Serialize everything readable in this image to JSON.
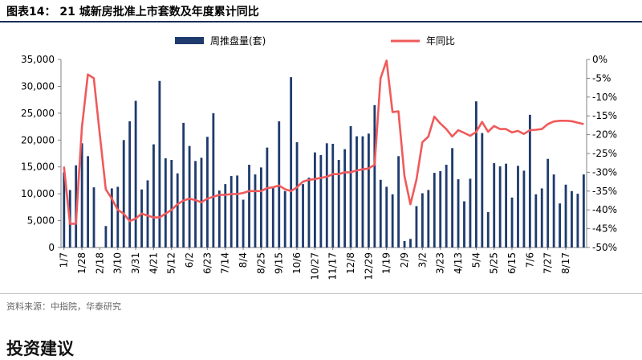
{
  "figure": {
    "title": "图表14：  21 城新房批准上市套数及年度累计同比",
    "source": "资料来源：中指院，华泰研究",
    "section_heading": "投资建议"
  },
  "colors": {
    "bar": "#1f3b6e",
    "line": "#f05a5b"
  },
  "chart_data": {
    "type": "bar+line",
    "title": "21 城新房批准上市套数及年度累计同比",
    "legend": [
      "周推盘量(套)",
      "年同比"
    ],
    "legend_position": "top",
    "y_left": {
      "min": 0,
      "max": 35000,
      "ticks": [
        "0",
        "5,000",
        "10,000",
        "15,000",
        "20,000",
        "25,000",
        "30,000",
        "35,000"
      ]
    },
    "y_right": {
      "min": -50,
      "max": 0,
      "ticks": [
        "0%",
        "-5%",
        "-10%",
        "-15%",
        "-20%",
        "-25%",
        "-30%",
        "-35%",
        "-40%",
        "-45%",
        "-50%"
      ]
    },
    "x_tick_labels": [
      "1/7",
      "1/28",
      "2/18",
      "3/10",
      "3/31",
      "4/21",
      "5/12",
      "6/2",
      "6/23",
      "7/14",
      "8/4",
      "8/25",
      "9/15",
      "10/6",
      "10/27",
      "11/17",
      "12/8",
      "12/29",
      "1/19",
      "2/9",
      "3/2",
      "3/23",
      "4/13",
      "5/4",
      "5/25",
      "6/15",
      "7/6",
      "7/27",
      "8/17"
    ],
    "series": [
      {
        "name": "周推盘量(套)",
        "type": "bar",
        "axis": "left",
        "values": [
          14000,
          10700,
          15300,
          19400,
          17000,
          11200,
          0,
          4000,
          11000,
          11300,
          20000,
          23500,
          27300,
          10800,
          12500,
          19200,
          31000,
          16600,
          16300,
          13800,
          23200,
          18900,
          16100,
          16700,
          20600,
          25000,
          10600,
          11800,
          13300,
          13400,
          8900,
          15400,
          13600,
          14900,
          18600,
          11100,
          23500,
          10500,
          31700,
          19600,
          11800,
          13000,
          17700,
          17200,
          19400,
          19300,
          16300,
          18300,
          22600,
          20700,
          20700,
          21200,
          26500,
          12600,
          11300,
          9900,
          17000,
          1200,
          1600,
          7700,
          10100,
          10700,
          13900,
          14200,
          15400,
          18500,
          12700,
          8600,
          12800,
          27200,
          21300,
          6600,
          15700,
          15100,
          15600,
          9300,
          15200,
          14300,
          24700,
          9900,
          11000,
          16500,
          13600,
          8200,
          11700,
          10500,
          10000,
          13600
        ]
      },
      {
        "name": "年同比",
        "type": "line",
        "axis": "right",
        "values": [
          -28.5,
          -43.7,
          -43.7,
          -18,
          -4,
          -5,
          -20,
          -34.5,
          -37,
          -40,
          -41,
          -43,
          -42.3,
          -41,
          -41.5,
          -42,
          -42,
          -41,
          -40,
          -38.5,
          -37.5,
          -37,
          -37.4,
          -38,
          -37,
          -36.5,
          -36,
          -36,
          -35.8,
          -35.8,
          -35.5,
          -35,
          -35,
          -35,
          -34.2,
          -34,
          -33.5,
          -34.5,
          -35,
          -34,
          -32.5,
          -32,
          -31.8,
          -31.5,
          -31.2,
          -30.5,
          -30.5,
          -30,
          -30,
          -29.5,
          -29.2,
          -29,
          -28,
          -5,
          -0.3,
          -14,
          -13.8,
          -31,
          -38.5,
          -32,
          -22,
          -20.5,
          -15.2,
          -17,
          -18.5,
          -20.5,
          -18.8,
          -19.5,
          -20.3,
          -19.3,
          -16.6,
          -19.2,
          -17.7,
          -18.5,
          -18.5,
          -19.4,
          -19,
          -19.8,
          -18.8,
          -18.7,
          -18.5,
          -17.2,
          -16.5,
          -16.3,
          -16.3,
          -16.4,
          -16.8,
          -17.2
        ]
      }
    ]
  }
}
